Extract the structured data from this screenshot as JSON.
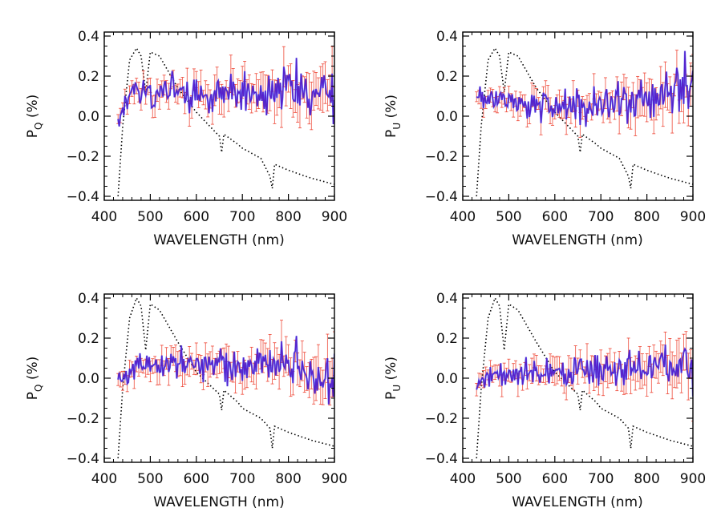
{
  "chart_data": [
    {
      "type": "line",
      "xlabel": "WAVELENGTH (nm)",
      "ylabel": {
        "main": "P",
        "sub": "Q",
        "unit": "(%)"
      },
      "xlim": [
        400,
        900
      ],
      "ylim": [
        -0.42,
        0.42
      ],
      "xticks": [
        "400",
        "500",
        "600",
        "700",
        "800",
        "900"
      ],
      "yticks": [
        "0.4",
        "0.2",
        "0.0",
        "−0.2",
        "−0.4"
      ],
      "noise_scale": 0.075,
      "err_scale": 0.07,
      "series": [
        {
          "role": "polarization",
          "style": {
            "line_color": "#5522cc",
            "dip_color": "#0022ff",
            "err_color": "#ee4433"
          },
          "x": [
            430,
            460,
            500,
            540,
            580,
            620,
            660,
            700,
            740,
            780,
            820,
            860,
            900
          ],
          "y": [
            0.0,
            0.12,
            0.12,
            0.12,
            0.13,
            0.1,
            0.12,
            0.13,
            0.11,
            0.14,
            0.13,
            0.1,
            0.12
          ]
        },
        {
          "role": "reference-spectrum",
          "style": {
            "line": "dotted",
            "color": "#000000"
          },
          "x": [
            430,
            440,
            455,
            470,
            480,
            490,
            500,
            520,
            560,
            600,
            650,
            655,
            660,
            690,
            700,
            740,
            760,
            765,
            770,
            800,
            850,
            900
          ],
          "y": [
            -0.4,
            -0.05,
            0.28,
            0.34,
            0.3,
            0.12,
            0.32,
            0.3,
            0.14,
            0.02,
            -0.1,
            -0.18,
            -0.09,
            -0.14,
            -0.16,
            -0.21,
            -0.3,
            -0.36,
            -0.24,
            -0.27,
            -0.31,
            -0.34
          ]
        }
      ]
    },
    {
      "type": "line",
      "xlabel": "WAVELENGTH (nm)",
      "ylabel": {
        "main": "P",
        "sub": "U",
        "unit": "(%)"
      },
      "xlim": [
        400,
        900
      ],
      "ylim": [
        -0.42,
        0.42
      ],
      "xticks": [
        "400",
        "500",
        "600",
        "700",
        "800",
        "900"
      ],
      "yticks": [
        "0.4",
        "0.2",
        "0.0",
        "−0.2",
        "−0.4"
      ],
      "noise_scale": 0.07,
      "err_scale": 0.065,
      "series": [
        {
          "role": "polarization",
          "style": {
            "line_color": "#5522cc",
            "dip_color": "#0022ff",
            "err_color": "#ee4433"
          },
          "x": [
            430,
            460,
            500,
            540,
            580,
            620,
            660,
            700,
            740,
            780,
            820,
            860,
            900
          ],
          "y": [
            0.08,
            0.1,
            0.08,
            0.06,
            0.06,
            0.05,
            0.04,
            0.05,
            0.06,
            0.08,
            0.1,
            0.14,
            0.18
          ]
        },
        {
          "role": "reference-spectrum",
          "style": {
            "line": "dotted",
            "color": "#000000"
          },
          "x": [
            430,
            440,
            455,
            470,
            480,
            490,
            500,
            520,
            560,
            600,
            650,
            655,
            660,
            690,
            700,
            740,
            760,
            765,
            770,
            800,
            850,
            900
          ],
          "y": [
            -0.4,
            -0.05,
            0.28,
            0.34,
            0.3,
            0.12,
            0.32,
            0.3,
            0.14,
            0.02,
            -0.1,
            -0.18,
            -0.09,
            -0.14,
            -0.16,
            -0.21,
            -0.3,
            -0.36,
            -0.24,
            -0.27,
            -0.31,
            -0.34
          ]
        }
      ]
    },
    {
      "type": "line",
      "xlabel": "WAVELENGTH (nm)",
      "ylabel": {
        "main": "P",
        "sub": "Q",
        "unit": "(%)"
      },
      "xlim": [
        400,
        900
      ],
      "ylim": [
        -0.42,
        0.42
      ],
      "xticks": [
        "400",
        "500",
        "600",
        "700",
        "800",
        "900"
      ],
      "yticks": [
        "0.4",
        "0.2",
        "0.0",
        "−0.2",
        "−0.4"
      ],
      "noise_scale": 0.065,
      "err_scale": 0.07,
      "series": [
        {
          "role": "polarization",
          "style": {
            "line_color": "#5522cc",
            "dip_color": "#0022ff",
            "err_color": "#ee4433"
          },
          "x": [
            430,
            460,
            500,
            540,
            580,
            620,
            660,
            700,
            740,
            780,
            820,
            860,
            900
          ],
          "y": [
            0.0,
            0.05,
            0.07,
            0.08,
            0.08,
            0.06,
            0.05,
            0.06,
            0.07,
            0.08,
            0.06,
            0.0,
            0.0
          ]
        },
        {
          "role": "reference-spectrum",
          "style": {
            "line": "dotted",
            "color": "#000000"
          },
          "x": [
            430,
            440,
            455,
            470,
            480,
            490,
            500,
            520,
            560,
            600,
            650,
            655,
            660,
            690,
            700,
            740,
            760,
            765,
            770,
            800,
            850,
            900
          ],
          "y": [
            -0.4,
            -0.05,
            0.3,
            0.4,
            0.36,
            0.14,
            0.37,
            0.34,
            0.18,
            0.03,
            -0.08,
            -0.16,
            -0.06,
            -0.12,
            -0.15,
            -0.2,
            -0.25,
            -0.35,
            -0.24,
            -0.27,
            -0.31,
            -0.34
          ]
        }
      ]
    },
    {
      "type": "line",
      "xlabel": "WAVELENGTH (nm)",
      "ylabel": {
        "main": "P",
        "sub": "U",
        "unit": "(%)"
      },
      "xlim": [
        400,
        900
      ],
      "ylim": [
        -0.42,
        0.42
      ],
      "xticks": [
        "400",
        "500",
        "600",
        "700",
        "800",
        "900"
      ],
      "yticks": [
        "0.4",
        "0.2",
        "0.0",
        "−0.2",
        "−0.4"
      ],
      "noise_scale": 0.06,
      "err_scale": 0.065,
      "series": [
        {
          "role": "polarization",
          "style": {
            "line_color": "#5522cc",
            "dip_color": "#0022ff",
            "err_color": "#ee4433"
          },
          "x": [
            430,
            460,
            500,
            540,
            580,
            620,
            660,
            700,
            740,
            780,
            820,
            860,
            900
          ],
          "y": [
            -0.03,
            0.02,
            0.02,
            0.02,
            0.03,
            0.02,
            0.03,
            0.05,
            0.04,
            0.05,
            0.06,
            0.05,
            0.05
          ]
        },
        {
          "role": "reference-spectrum",
          "style": {
            "line": "dotted",
            "color": "#000000"
          },
          "x": [
            430,
            440,
            455,
            470,
            480,
            490,
            500,
            520,
            560,
            600,
            650,
            655,
            660,
            690,
            700,
            740,
            760,
            765,
            770,
            800,
            850,
            900
          ],
          "y": [
            -0.4,
            -0.05,
            0.3,
            0.4,
            0.36,
            0.14,
            0.37,
            0.34,
            0.18,
            0.03,
            -0.08,
            -0.16,
            -0.06,
            -0.12,
            -0.15,
            -0.2,
            -0.25,
            -0.35,
            -0.24,
            -0.27,
            -0.31,
            -0.34
          ]
        }
      ]
    }
  ]
}
